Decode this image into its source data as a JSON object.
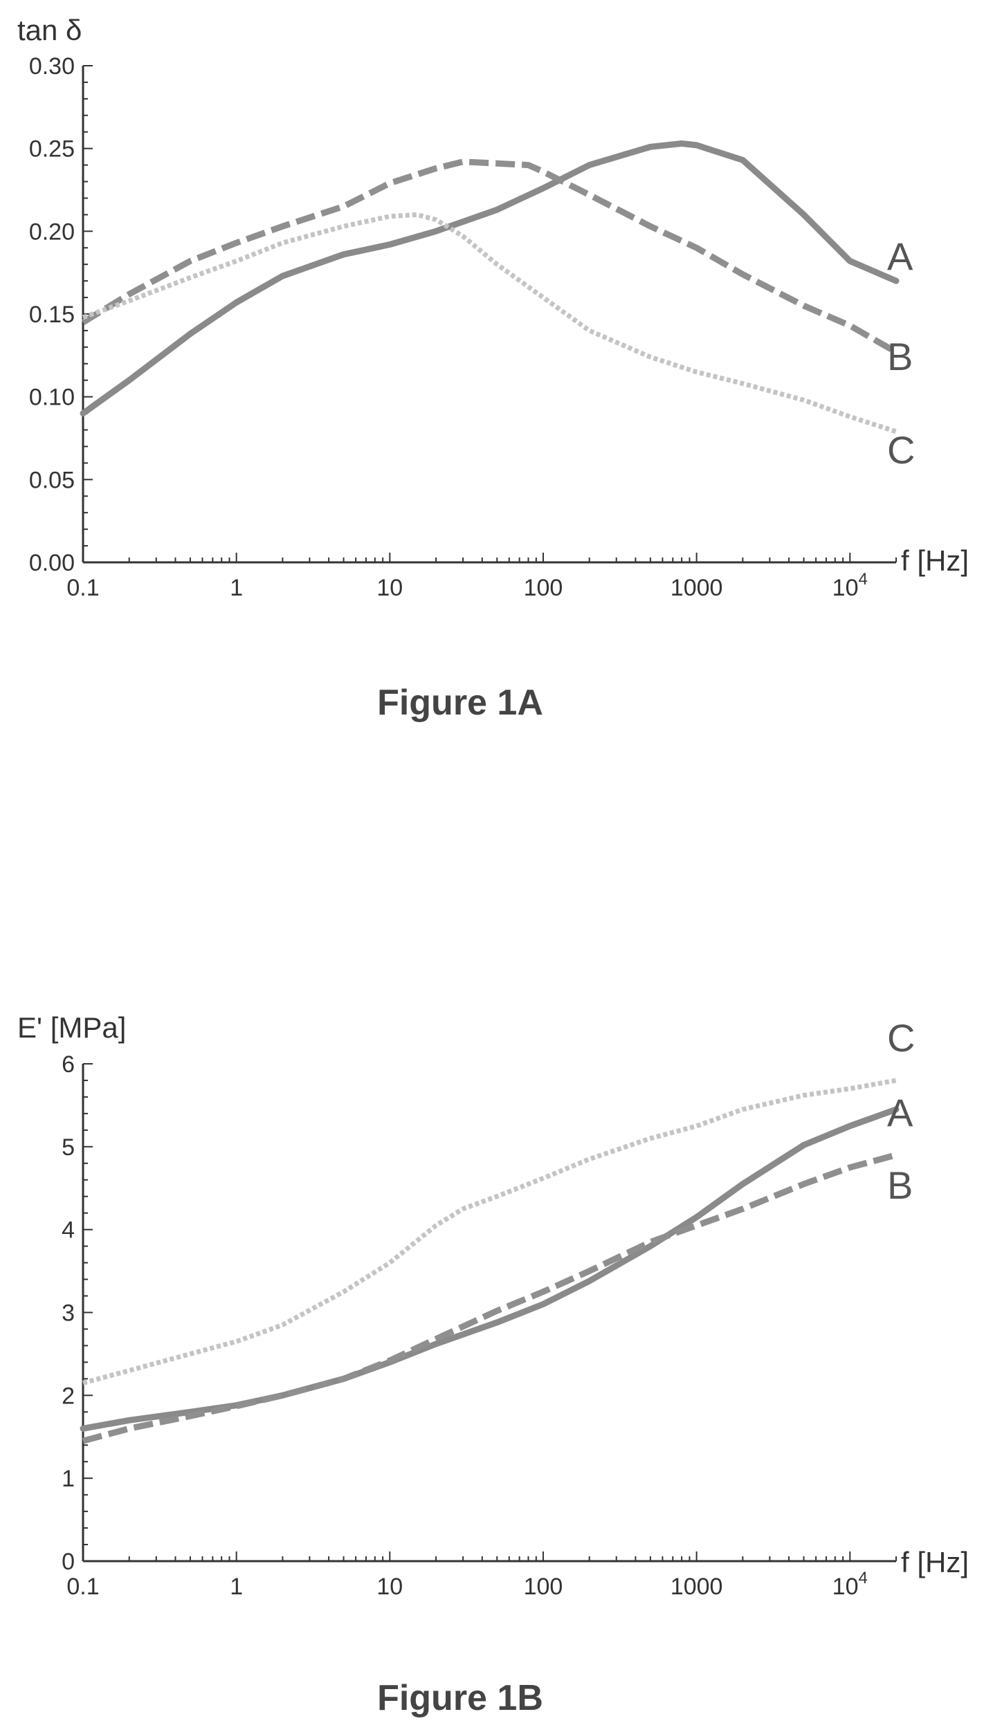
{
  "chart_data": [
    {
      "type": "line",
      "x_scale": "log",
      "caption": "Figure 1A",
      "ylabel": "tan δ",
      "xlabel": "f [Hz]",
      "xlim": [
        0.1,
        20000
      ],
      "ylim": [
        0,
        0.3
      ],
      "x_ticks": [
        {
          "value": 0.1,
          "label": "0.1"
        },
        {
          "value": 1,
          "label": "1"
        },
        {
          "value": 10,
          "label": "10"
        },
        {
          "value": 100,
          "label": "100"
        },
        {
          "value": 1000,
          "label": "1000"
        },
        {
          "value": 10000,
          "label": "10",
          "sup": "4"
        }
      ],
      "y_ticks": [
        {
          "value": 0.0,
          "label": "0.00"
        },
        {
          "value": 0.05,
          "label": "0.05"
        },
        {
          "value": 0.1,
          "label": "0.10"
        },
        {
          "value": 0.15,
          "label": "0.15"
        },
        {
          "value": 0.2,
          "label": "0.20"
        },
        {
          "value": 0.25,
          "label": "0.25"
        },
        {
          "value": 0.3,
          "label": "0.30"
        }
      ],
      "series": [
        {
          "name": "A",
          "style": "solid",
          "x": [
            0.1,
            0.2,
            0.5,
            1,
            2,
            5,
            10,
            20,
            50,
            100,
            200,
            500,
            800,
            1000,
            2000,
            5000,
            10000,
            20000
          ],
          "y": [
            0.09,
            0.11,
            0.138,
            0.157,
            0.173,
            0.186,
            0.192,
            0.2,
            0.213,
            0.226,
            0.24,
            0.251,
            0.253,
            0.252,
            0.243,
            0.21,
            0.182,
            0.17
          ]
        },
        {
          "name": "B",
          "style": "dashed",
          "x": [
            0.1,
            0.2,
            0.5,
            1,
            2,
            5,
            10,
            20,
            30,
            50,
            80,
            100,
            200,
            500,
            1000,
            2000,
            5000,
            10000,
            20000
          ],
          "y": [
            0.145,
            0.162,
            0.182,
            0.193,
            0.203,
            0.215,
            0.229,
            0.238,
            0.242,
            0.241,
            0.24,
            0.236,
            0.222,
            0.203,
            0.19,
            0.174,
            0.155,
            0.143,
            0.127
          ]
        },
        {
          "name": "C",
          "style": "dotted",
          "x": [
            0.1,
            0.2,
            0.5,
            1,
            2,
            5,
            10,
            15,
            20,
            30,
            50,
            100,
            200,
            500,
            1000,
            2000,
            5000,
            10000,
            20000
          ],
          "y": [
            0.148,
            0.158,
            0.172,
            0.182,
            0.193,
            0.203,
            0.209,
            0.21,
            0.207,
            0.197,
            0.18,
            0.16,
            0.14,
            0.124,
            0.115,
            0.108,
            0.098,
            0.088,
            0.079
          ]
        }
      ]
    },
    {
      "type": "line",
      "x_scale": "log",
      "caption": "Figure 1B",
      "ylabel": "E' [MPa]",
      "xlabel": "f [Hz]",
      "xlim": [
        0.1,
        20000
      ],
      "ylim": [
        0,
        6
      ],
      "x_ticks": [
        {
          "value": 0.1,
          "label": "0.1"
        },
        {
          "value": 1,
          "label": "1"
        },
        {
          "value": 10,
          "label": "10"
        },
        {
          "value": 100,
          "label": "100"
        },
        {
          "value": 1000,
          "label": "1000"
        },
        {
          "value": 10000,
          "label": "10",
          "sup": "4"
        }
      ],
      "y_ticks": [
        {
          "value": 0,
          "label": "0"
        },
        {
          "value": 1,
          "label": "1"
        },
        {
          "value": 2,
          "label": "2"
        },
        {
          "value": 3,
          "label": "3"
        },
        {
          "value": 4,
          "label": "4"
        },
        {
          "value": 5,
          "label": "5"
        },
        {
          "value": 6,
          "label": "6"
        }
      ],
      "series": [
        {
          "name": "A",
          "style": "solid",
          "x": [
            0.1,
            0.2,
            0.5,
            1,
            2,
            5,
            10,
            20,
            50,
            100,
            200,
            500,
            1000,
            2000,
            5000,
            10000,
            20000
          ],
          "y": [
            1.6,
            1.7,
            1.8,
            1.88,
            2.0,
            2.2,
            2.4,
            2.62,
            2.88,
            3.1,
            3.38,
            3.8,
            4.15,
            4.55,
            5.02,
            5.25,
            5.45
          ]
        },
        {
          "name": "B",
          "style": "dashed",
          "x": [
            0.1,
            0.2,
            0.5,
            1,
            2,
            5,
            10,
            20,
            50,
            100,
            200,
            500,
            1000,
            2000,
            5000,
            10000,
            20000
          ],
          "y": [
            1.45,
            1.6,
            1.75,
            1.87,
            2.0,
            2.2,
            2.42,
            2.68,
            3.02,
            3.25,
            3.5,
            3.85,
            4.05,
            4.25,
            4.55,
            4.75,
            4.9
          ]
        },
        {
          "name": "C",
          "style": "dotted",
          "x": [
            0.1,
            0.2,
            0.5,
            1,
            2,
            5,
            10,
            20,
            30,
            50,
            100,
            200,
            500,
            1000,
            2000,
            5000,
            10000,
            20000
          ],
          "y": [
            2.15,
            2.3,
            2.5,
            2.65,
            2.85,
            3.25,
            3.6,
            4.05,
            4.25,
            4.4,
            4.62,
            4.85,
            5.1,
            5.25,
            5.45,
            5.62,
            5.7,
            5.8
          ]
        }
      ]
    }
  ]
}
